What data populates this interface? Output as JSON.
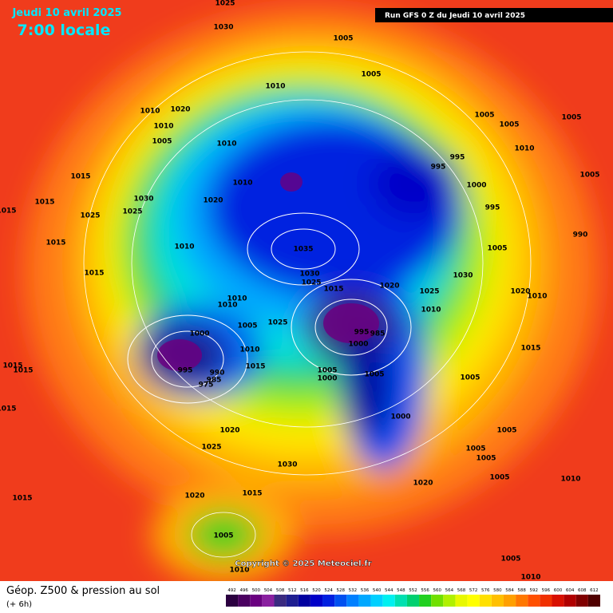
{
  "header": {
    "date": "Jeudi 10 avril 2025",
    "time": "7:00 locale",
    "run": "Run GFS 0 Z du Jeudi 10 avril 2025"
  },
  "map": {
    "pressure_labels": [
      "1025",
      "1030",
      "1005",
      "1005",
      "1010",
      "1010",
      "1020",
      "1010",
      "1005",
      "1010",
      "1005",
      "1005",
      "1005",
      "1010",
      "995",
      "995",
      "1000",
      "995",
      "1005",
      "1015",
      "1015",
      "1015",
      "1025",
      "1030",
      "1025",
      "1020",
      "1010",
      "1015",
      "1010",
      "1035",
      "1005",
      "990",
      "1030",
      "1025",
      "1015",
      "1020",
      "1025",
      "1030",
      "1015",
      "1010",
      "1010",
      "1010",
      "1020",
      "1010",
      "1000",
      "1005",
      "1025",
      "995",
      "985",
      "1000",
      "1015",
      "1015",
      "1015",
      "995",
      "990",
      "985",
      "975",
      "1010",
      "1015",
      "1005",
      "1005",
      "1000",
      "1005",
      "1015",
      "1000",
      "1020",
      "1005",
      "1025",
      "1005",
      "1005",
      "1030",
      "1005",
      "1020",
      "1010",
      "1015",
      "1020",
      "1015",
      "1005",
      "1005",
      "1010",
      "1010"
    ],
    "copyright": "Copyright © 2025 Meteociel.fr"
  },
  "footer": {
    "title": "Géop. Z500 & pression au sol",
    "subtitle": "(+ 6h)"
  },
  "colorbar": {
    "labels": [
      492,
      496,
      500,
      504,
      508,
      512,
      516,
      520,
      524,
      528,
      532,
      536,
      540,
      544,
      548,
      552,
      556,
      560,
      564,
      568,
      572,
      576,
      580,
      584,
      588,
      592,
      596,
      600,
      604,
      608,
      612
    ],
    "colors": [
      "#2b0040",
      "#4a0060",
      "#6a0080",
      "#8a20a0",
      "#3a2a80",
      "#1e1e90",
      "#0000a0",
      "#0000c8",
      "#0020e0",
      "#0050f0",
      "#0080ff",
      "#00a8ff",
      "#00d0ff",
      "#00f0f0",
      "#00e0b0",
      "#00d070",
      "#20d020",
      "#70e000",
      "#b0f000",
      "#e8f800",
      "#ffff00",
      "#ffe000",
      "#ffc000",
      "#ffa000",
      "#ff7800",
      "#ff5000",
      "#f03000",
      "#d81000",
      "#b00000",
      "#800000",
      "#500000"
    ]
  }
}
